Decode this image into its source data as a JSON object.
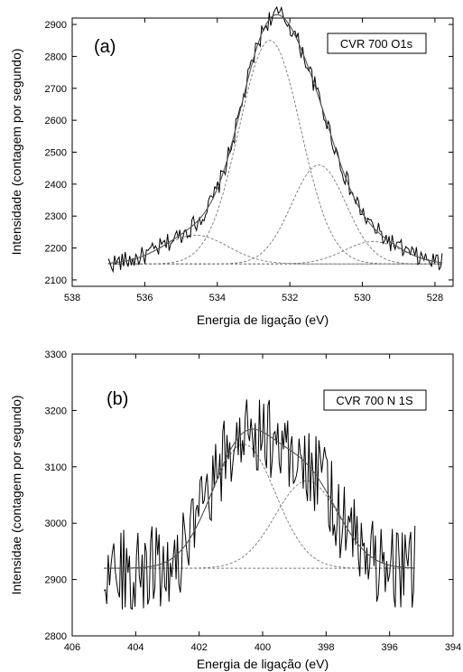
{
  "chart_data": [
    {
      "type": "line",
      "panel_label": "(a)",
      "legend_label": "CVR 700 O1s",
      "xlabel": "Energia de ligação (eV)",
      "ylabel": "Intensidade (contagem por segundo)",
      "xlim": [
        538,
        527.5
      ],
      "ylim": [
        2080,
        2920
      ],
      "xticks": [
        538,
        536,
        534,
        532,
        530,
        528
      ],
      "yticks": [
        2100,
        2200,
        2300,
        2400,
        2500,
        2600,
        2700,
        2800,
        2900
      ],
      "x_reversed": true,
      "data_range": [
        537,
        527.8
      ],
      "baseline": 2150,
      "peaks": [
        {
          "center": 532.55,
          "height": 700,
          "sigma": 0.85
        },
        {
          "center": 531.2,
          "height": 310,
          "sigma": 0.75
        },
        {
          "center": 534.6,
          "height": 90,
          "sigma": 0.9
        },
        {
          "center": 529.7,
          "height": 70,
          "sigma": 0.8
        }
      ],
      "noise_amplitude": 30,
      "series": [
        {
          "kind": "raw",
          "style": "solid",
          "color": "#000000"
        },
        {
          "kind": "fit",
          "style": "solid",
          "color": "#555555"
        },
        {
          "kind": "components",
          "style": "dashed",
          "color": "#777777"
        }
      ]
    },
    {
      "type": "line",
      "panel_label": "(b)",
      "legend_label": "CVR 700 N 1S",
      "xlabel": "Energia de ligação (eV)",
      "ylabel": "Intensidae (contagem por segundo)",
      "xlim": [
        406,
        394
      ],
      "ylim": [
        2800,
        3300
      ],
      "xticks": [
        406,
        404,
        402,
        400,
        398,
        396,
        394
      ],
      "yticks": [
        2800,
        2900,
        3000,
        3100,
        3200,
        3300
      ],
      "x_reversed": true,
      "data_range": [
        405,
        395.2
      ],
      "baseline": 2920,
      "peaks": [
        {
          "center": 400.6,
          "height": 220,
          "sigma": 1.0
        },
        {
          "center": 398.6,
          "height": 155,
          "sigma": 1.0
        }
      ],
      "noise_amplitude": 75,
      "series": [
        {
          "kind": "raw",
          "style": "solid",
          "color": "#000000"
        },
        {
          "kind": "fit",
          "style": "solid",
          "color": "#555555"
        },
        {
          "kind": "components",
          "style": "dashed",
          "color": "#777777"
        }
      ]
    }
  ]
}
